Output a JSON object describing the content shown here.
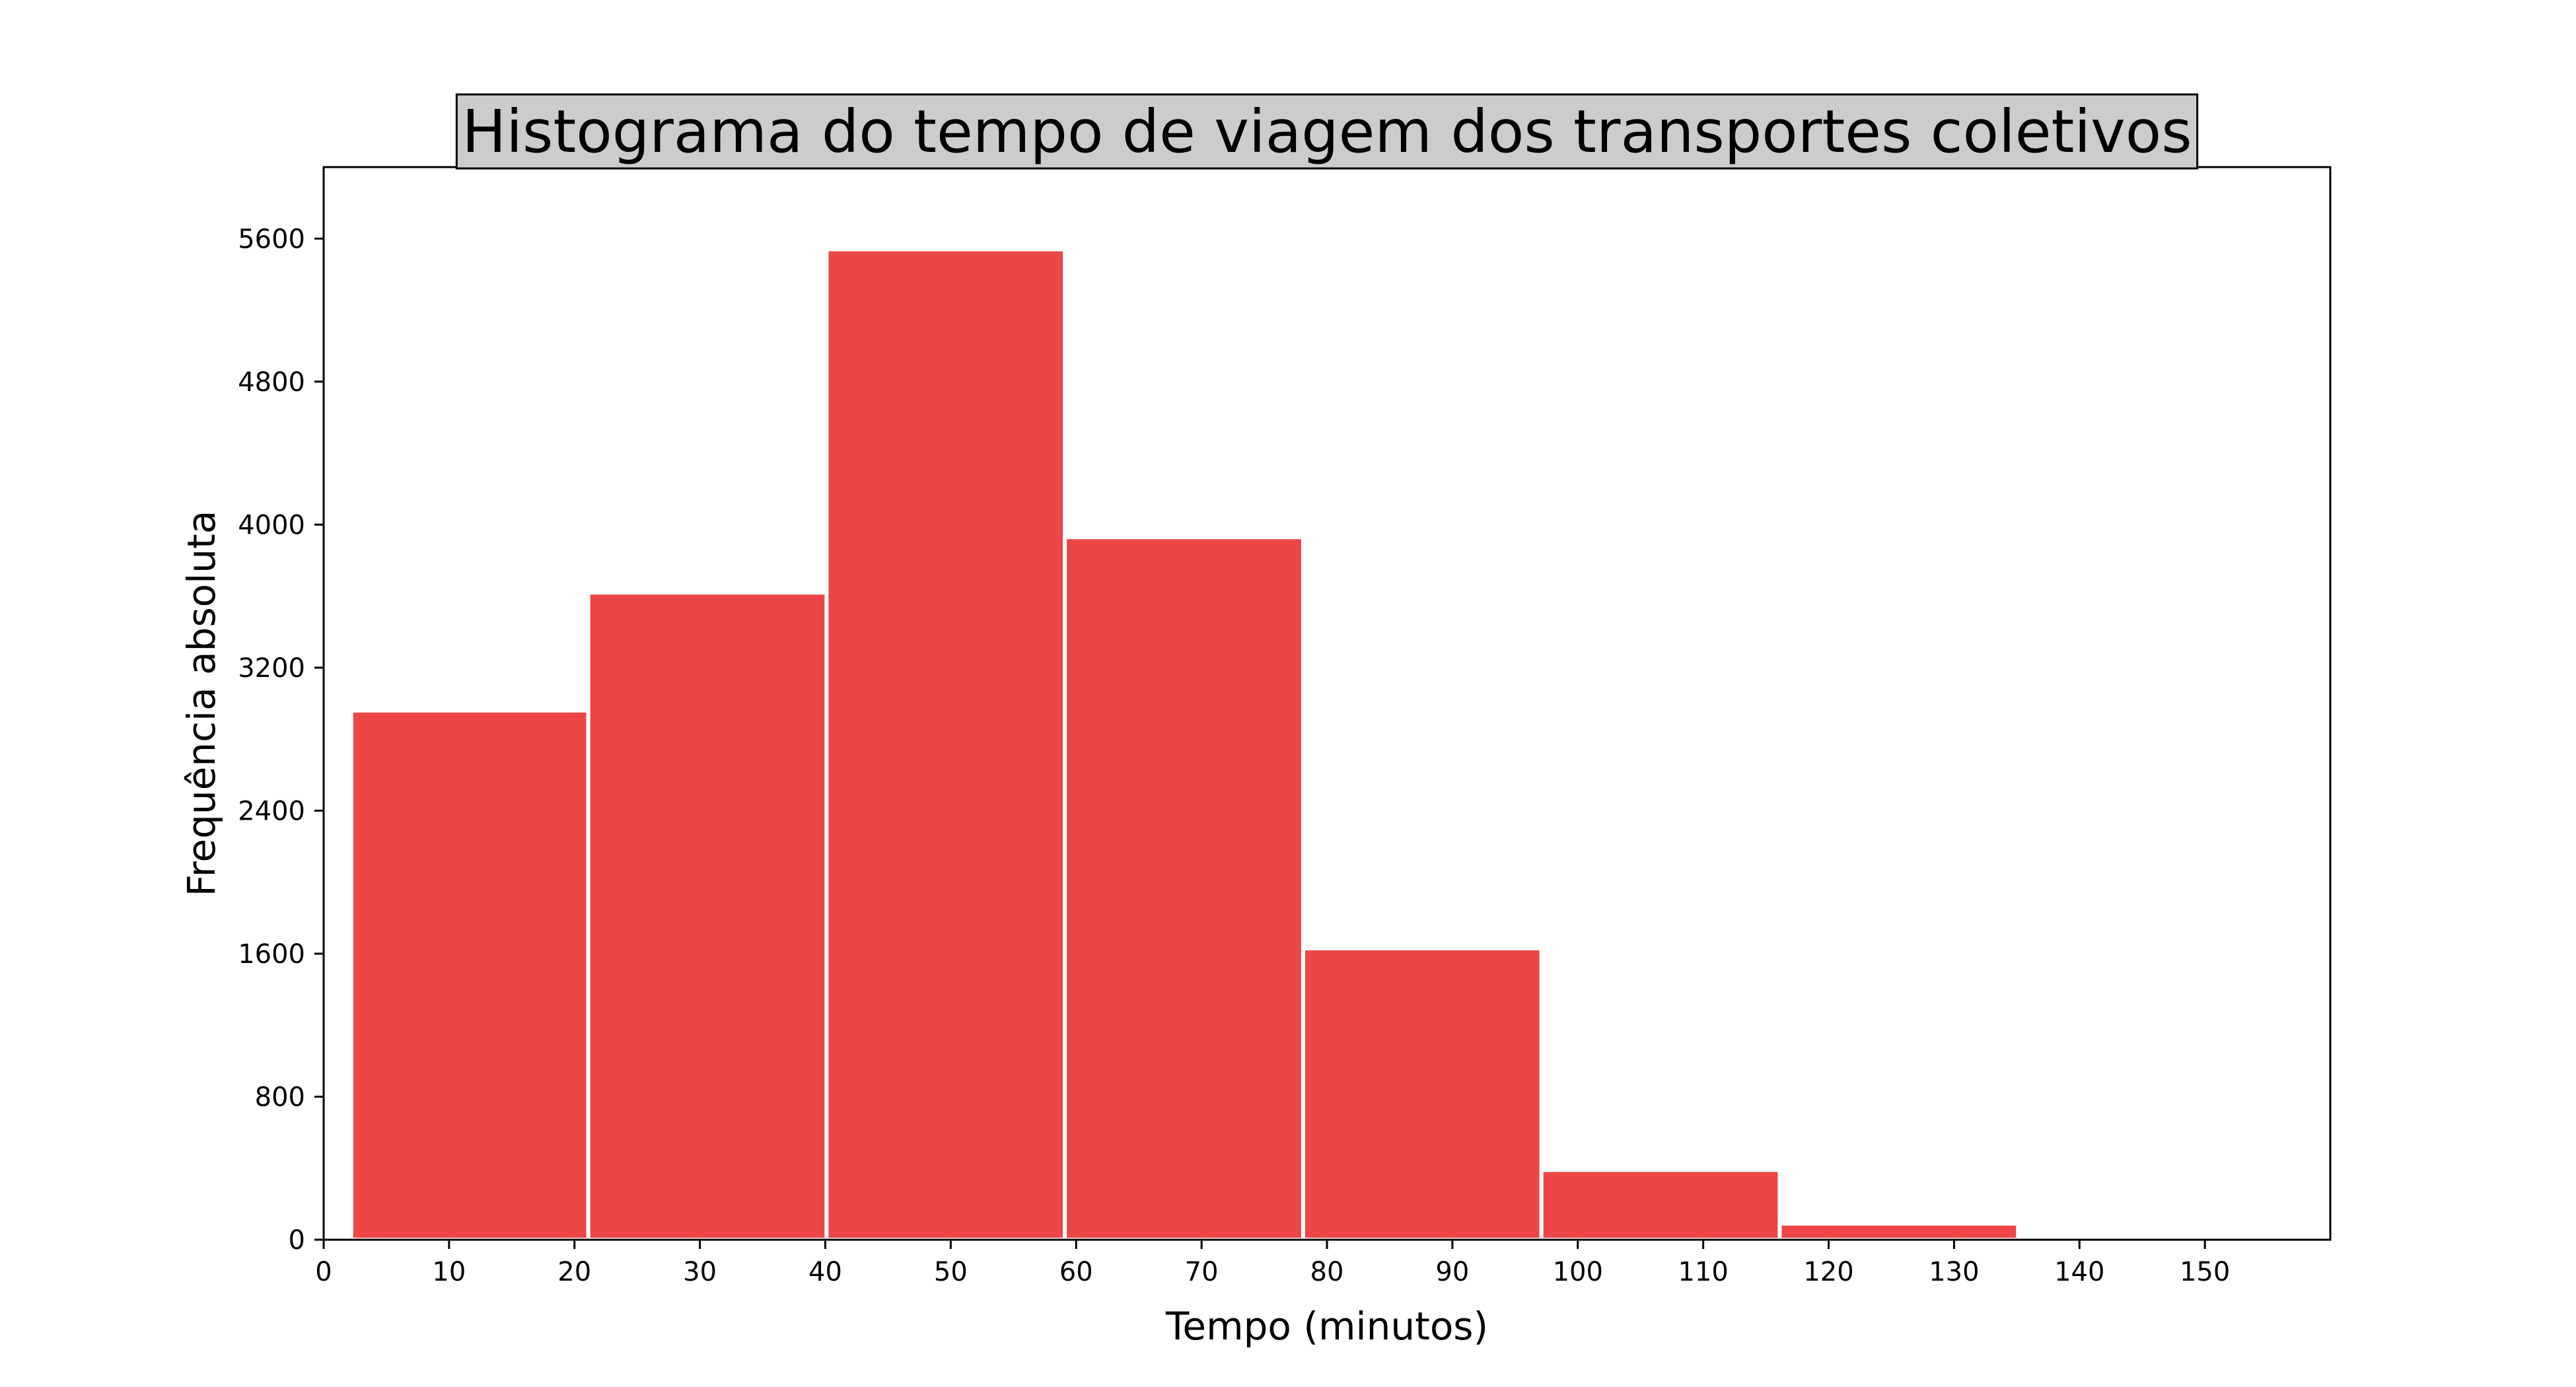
{
  "chart_data": {
    "type": "bar",
    "title": "Histograma do tempo de viagem dos transportes coletivos",
    "xlabel": "Tempo (minutos)",
    "ylabel": "Frequência absoluta",
    "xlim": [
      0,
      160
    ],
    "ylim": [
      0,
      6000
    ],
    "x_ticks": [
      0,
      10,
      20,
      30,
      40,
      50,
      60,
      70,
      80,
      90,
      100,
      110,
      120,
      130,
      140,
      150
    ],
    "y_ticks": [
      0,
      800,
      1600,
      2400,
      3200,
      4000,
      4800,
      5600
    ],
    "bins": [
      {
        "x_start": 2.2,
        "x_end": 21.1,
        "value": 2960
      },
      {
        "x_start": 21.1,
        "x_end": 40.1,
        "value": 3620
      },
      {
        "x_start": 40.1,
        "x_end": 59.1,
        "value": 5540
      },
      {
        "x_start": 59.1,
        "x_end": 78.1,
        "value": 3930
      },
      {
        "x_start": 78.1,
        "x_end": 97.1,
        "value": 1630
      },
      {
        "x_start": 97.1,
        "x_end": 116.1,
        "value": 390
      },
      {
        "x_start": 116.1,
        "x_end": 135.1,
        "value": 90
      },
      {
        "x_start": 135.1,
        "x_end": 154.1,
        "value": 15
      }
    ],
    "bar_color": "#ec4646",
    "bar_edge_color": "#ffffff",
    "title_background": "#cccccc",
    "grid": false,
    "legend": "none"
  }
}
